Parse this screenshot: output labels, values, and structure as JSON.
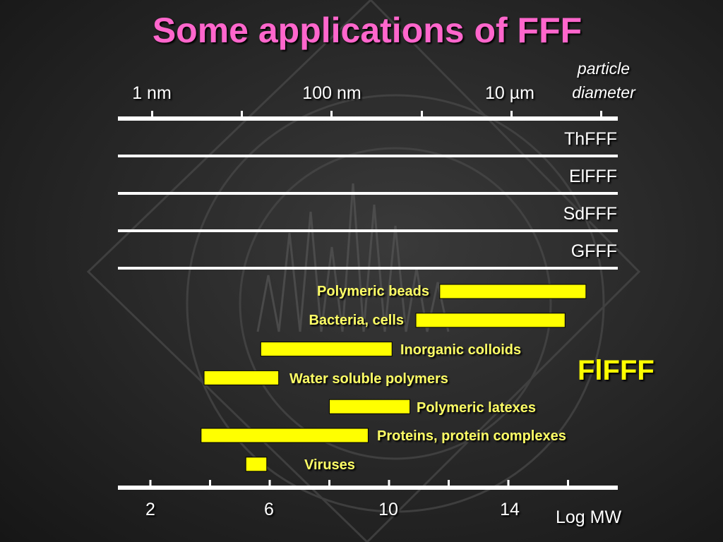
{
  "title": "Some applications of FFF",
  "top_axis": {
    "caption": "particle diameter",
    "labels": [
      "1 nm",
      "100 nm",
      "10 µm"
    ]
  },
  "techniques": [
    "ThFFF",
    "ElFFF",
    "SdFFF",
    "GFFF"
  ],
  "flfff_label": "FlFFF",
  "bottom_axis": {
    "caption": "Log MW",
    "labels": [
      "2",
      "6",
      "10",
      "14"
    ]
  },
  "chart_data": {
    "type": "range-bar",
    "x_axis": {
      "label": "Log MW",
      "range": [
        0,
        17
      ],
      "ticks": [
        2,
        4,
        6,
        8,
        10,
        12,
        14,
        16
      ],
      "tick_labels": [
        2,
        6,
        10,
        14
      ]
    },
    "top_axis": {
      "label": "particle diameter",
      "tick_labels": [
        "1 nm",
        "100 nm",
        "10 µm"
      ]
    },
    "bar_color": "#ffff00",
    "series": [
      {
        "name": "Polymeric beads",
        "min": 11.7,
        "max": 16.6
      },
      {
        "name": "Bacteria, cells",
        "min": 10.9,
        "max": 15.9
      },
      {
        "name": "Inorganic colloids",
        "min": 5.7,
        "max": 10.1
      },
      {
        "name": "Water soluble polymers",
        "min": 3.8,
        "max": 6.3
      },
      {
        "name": "Polymeric latexes",
        "min": 8.0,
        "max": 10.7
      },
      {
        "name": "Proteins, protein complexes",
        "min": 3.7,
        "max": 9.3
      },
      {
        "name": "Viruses",
        "min": 5.2,
        "max": 5.9
      }
    ]
  }
}
